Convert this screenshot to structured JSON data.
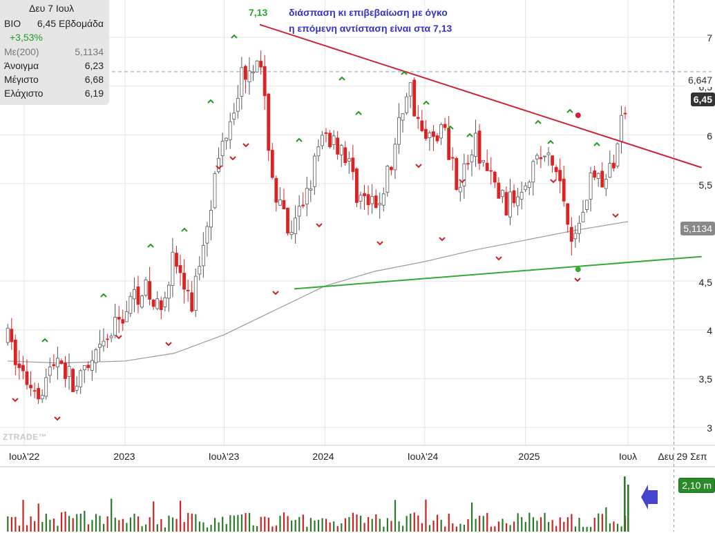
{
  "info": {
    "date": "Δευ 7 Ιουλ",
    "ticker": "BIO",
    "price_period": "6,45 Εβδομάδα",
    "change": "+3,53%",
    "rows": [
      {
        "label": "Με(200)",
        "value": "5,1134"
      },
      {
        "label": "Άνοιγμα",
        "value": "6,23"
      },
      {
        "label": "Μέγιστο",
        "value": "6,68"
      },
      {
        "label": "Ελάχιστο",
        "value": "6,19"
      }
    ]
  },
  "annotations": {
    "line1": "διάσπαση κι επιβεβαίωση  με όγκο",
    "line2": "η επόμενη αντίσταση είναι στα 7,13",
    "peak_label": "7,13"
  },
  "watermark": "ZTRADE™",
  "badges": {
    "crosshair": "6,647",
    "last": "6,45",
    "ma": "5,1134",
    "volume": "2,10 m"
  },
  "colors": {
    "up": "#555555",
    "down": "#dd2222",
    "resistance": "#cc2233",
    "support": "#33aa33",
    "ma": "#999999",
    "vol_up": "#2a7a2a",
    "vol_down": "#cc2222",
    "arrow": "#4444cc"
  },
  "chart_data": {
    "type": "candlestick",
    "period": "weekly",
    "y_ticks": [
      3,
      3.5,
      4,
      4.5,
      5.5,
      6,
      6.5,
      7
    ],
    "y_tick_labels": [
      "3",
      "3,5",
      "4",
      "4,5",
      "5,5",
      "6",
      "6,5",
      "7"
    ],
    "ylim": [
      2.85,
      7.45
    ],
    "x_ticks": [
      "Ιουλ'22",
      "2023",
      "Ιουλ'23",
      "2024",
      "Ιουλ'24",
      "2025",
      "Ιουλ",
      "Δευ 29 Σεπ"
    ],
    "x_tick_dates": [
      "2022-07-01",
      "2023-01-01",
      "2023-07-01",
      "2024-01-01",
      "2024-07-01",
      "2025-01-01",
      "2025-07-07",
      "2025-09-29"
    ],
    "close_path": [
      {
        "date": "2022-06-01",
        "value": 3.9
      },
      {
        "date": "2022-07-01",
        "value": 3.5
      },
      {
        "date": "2022-08-01",
        "value": 3.4
      },
      {
        "date": "2022-09-01",
        "value": 3.75
      },
      {
        "date": "2022-10-01",
        "value": 3.4
      },
      {
        "date": "2022-11-01",
        "value": 3.6
      },
      {
        "date": "2022-12-01",
        "value": 3.9
      },
      {
        "date": "2023-01-01",
        "value": 4.2
      },
      {
        "date": "2023-02-01",
        "value": 4.45
      },
      {
        "date": "2023-03-01",
        "value": 4.2
      },
      {
        "date": "2023-04-01",
        "value": 4.75
      },
      {
        "date": "2023-05-01",
        "value": 4.2
      },
      {
        "date": "2023-06-01",
        "value": 5.2
      },
      {
        "date": "2023-07-01",
        "value": 6.0
      },
      {
        "date": "2023-08-01",
        "value": 6.6
      },
      {
        "date": "2023-09-01",
        "value": 6.85
      },
      {
        "date": "2023-10-01",
        "value": 5.4
      },
      {
        "date": "2023-11-01",
        "value": 4.9
      },
      {
        "date": "2023-12-01",
        "value": 5.5
      },
      {
        "date": "2024-01-01",
        "value": 6.0
      },
      {
        "date": "2024-02-01",
        "value": 5.9
      },
      {
        "date": "2024-03-01",
        "value": 5.4
      },
      {
        "date": "2024-04-01",
        "value": 5.2
      },
      {
        "date": "2024-05-01",
        "value": 5.7
      },
      {
        "date": "2024-06-01",
        "value": 6.55
      },
      {
        "date": "2024-07-01",
        "value": 5.9
      },
      {
        "date": "2024-08-01",
        "value": 6.1
      },
      {
        "date": "2024-09-01",
        "value": 5.5
      },
      {
        "date": "2024-10-01",
        "value": 5.9
      },
      {
        "date": "2024-11-01",
        "value": 5.5
      },
      {
        "date": "2024-12-01",
        "value": 5.25
      },
      {
        "date": "2025-01-01",
        "value": 5.6
      },
      {
        "date": "2025-02-01",
        "value": 5.8
      },
      {
        "date": "2025-03-01",
        "value": 5.6
      },
      {
        "date": "2025-04-01",
        "value": 4.9
      },
      {
        "date": "2025-05-01",
        "value": 5.6
      },
      {
        "date": "2025-06-01",
        "value": 5.5
      },
      {
        "date": "2025-07-07",
        "value": 6.45
      }
    ],
    "ma200": [
      {
        "date": "2022-06-01",
        "value": 3.68
      },
      {
        "date": "2022-09-01",
        "value": 3.66
      },
      {
        "date": "2023-01-01",
        "value": 3.68
      },
      {
        "date": "2023-04-01",
        "value": 3.76
      },
      {
        "date": "2023-07-01",
        "value": 3.95
      },
      {
        "date": "2023-10-01",
        "value": 4.2
      },
      {
        "date": "2024-01-01",
        "value": 4.45
      },
      {
        "date": "2024-04-01",
        "value": 4.6
      },
      {
        "date": "2024-07-01",
        "value": 4.7
      },
      {
        "date": "2024-10-01",
        "value": 4.82
      },
      {
        "date": "2025-01-01",
        "value": 4.92
      },
      {
        "date": "2025-04-01",
        "value": 5.02
      },
      {
        "date": "2025-07-07",
        "value": 5.11
      }
    ],
    "resistance_line": {
      "from": {
        "date": "2023-09-04",
        "value": 7.13
      },
      "to": {
        "date": "2025-09-29",
        "value": 5.77
      }
    },
    "support_line": {
      "from": {
        "date": "2023-11-06",
        "value": 4.42
      },
      "to": {
        "date": "2025-09-29",
        "value": 4.73
      }
    },
    "pivot_points": [
      {
        "date": "2025-04-07",
        "value": 6.2,
        "color": "red"
      },
      {
        "date": "2025-04-07",
        "value": 4.62,
        "color": "green"
      }
    ],
    "crosshair_value": 6.647,
    "last_value": 6.45,
    "ma200_value": 5.1134,
    "volume_last": "2,10 m",
    "legend": []
  }
}
